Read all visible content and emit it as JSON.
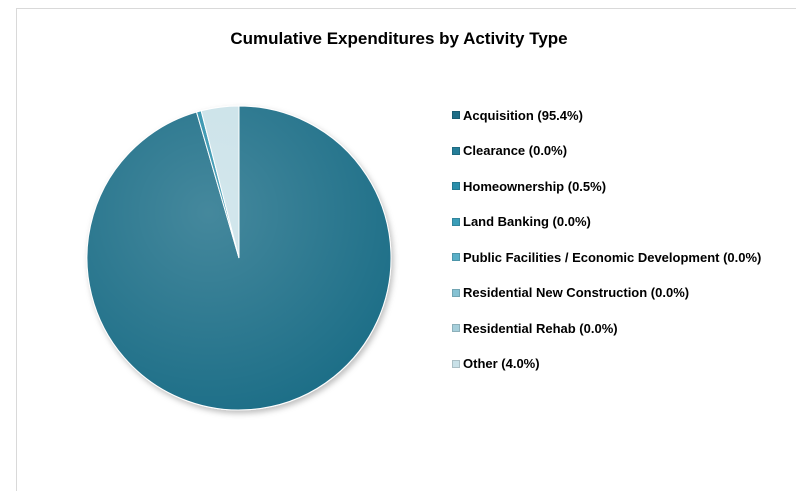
{
  "chart_data": {
    "type": "pie",
    "title": "Cumulative Expenditures by Activity Type",
    "legend_position": "right",
    "categories": [
      "Acquisition (95.4%)",
      "Clearance (0.0%)",
      "Homeownership (0.5%)",
      "Land Banking (0.0%)",
      "Public Facilities / Economic Development (0.0%)",
      "Residential New Construction (0.0%)",
      "Residential Rehab (0.0%)",
      "Other (4.0%)"
    ],
    "values": [
      95.4,
      0.0,
      0.5,
      0.0,
      0.0,
      0.0,
      0.0,
      4.0
    ],
    "colors": [
      "#1f6e87",
      "#247d98",
      "#2b8fab",
      "#3a9db8",
      "#5aafc7",
      "#86c2d3",
      "#a6cfdb",
      "#c9e1e8"
    ]
  }
}
